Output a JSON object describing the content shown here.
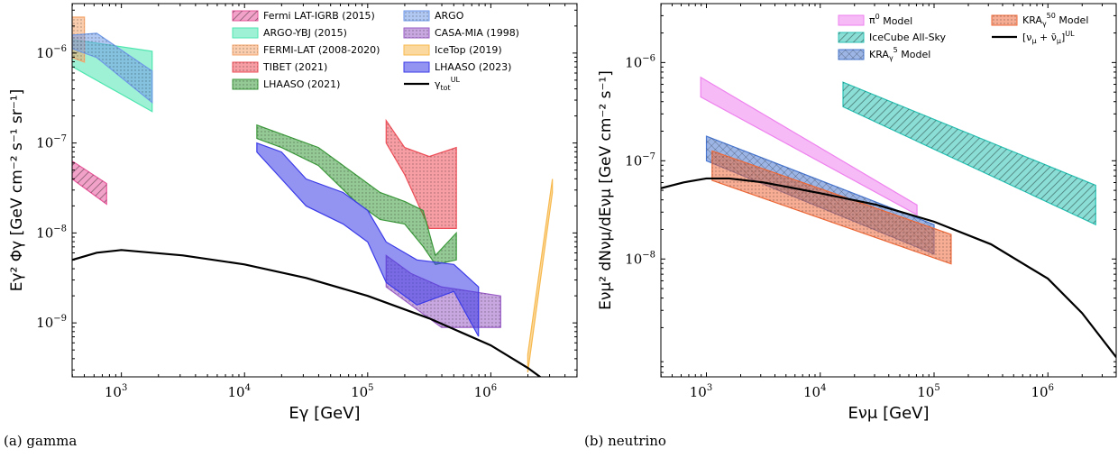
{
  "chart_data": [
    {
      "type": "area",
      "panel": "gamma",
      "caption": "(a) gamma",
      "xlabel": "Eγ [GeV]",
      "ylabel": "Eγ² Φγ [GeV cm⁻² s⁻¹ sr⁻¹]",
      "xscale": "log",
      "yscale": "log",
      "xlim_log10": [
        2.6,
        6.7
      ],
      "ylim_log10": [
        -9.6,
        -5.45
      ],
      "xticks": [
        {
          "label": "10",
          "exp": "3",
          "v": 3
        },
        {
          "label": "10",
          "exp": "4",
          "v": 4
        },
        {
          "label": "10",
          "exp": "5",
          "v": 5
        },
        {
          "label": "10",
          "exp": "6",
          "v": 6
        }
      ],
      "yticks": [
        {
          "label": "10",
          "exp": "−9",
          "v": -9
        },
        {
          "label": "10",
          "exp": "−8",
          "v": -8
        },
        {
          "label": "10",
          "exp": "−7",
          "v": -7
        },
        {
          "label": "10",
          "exp": "−6",
          "v": -6
        }
      ],
      "legend_position": "top-right",
      "series": [
        {
          "name": "Fermi LAT-IGRB (2015)",
          "kind": "band",
          "color": "#e8559a",
          "hatch": "diag",
          "upper": [
            [
              2.6,
              -7.2
            ],
            [
              2.88,
              -7.45
            ]
          ],
          "lower": [
            [
              2.6,
              -7.4
            ],
            [
              2.88,
              -7.68
            ]
          ]
        },
        {
          "name": "ARGO-YBJ (2015)",
          "kind": "band",
          "color": "#4ee6b0",
          "hatch": "none",
          "upper": [
            [
              2.6,
              -5.85
            ],
            [
              3.25,
              -5.98
            ]
          ],
          "lower": [
            [
              2.6,
              -6.15
            ],
            [
              3.25,
              -6.65
            ]
          ]
        },
        {
          "name": "FERMI-LAT (2008-2020)",
          "kind": "band",
          "color": "#f4a46a",
          "hatch": "dots",
          "upper": [
            [
              2.6,
              -5.6
            ],
            [
              2.7,
              -5.6
            ]
          ],
          "lower": [
            [
              2.6,
              -6.05
            ],
            [
              2.7,
              -6.1
            ]
          ]
        },
        {
          "name": "TIBET (2021)",
          "kind": "band",
          "color": "#ef4e58",
          "hatch": "dots",
          "upper": [
            [
              5.15,
              -6.75
            ],
            [
              5.3,
              -7.05
            ],
            [
              5.5,
              -7.15
            ],
            [
              5.72,
              -7.05
            ]
          ],
          "lower": [
            [
              5.15,
              -7.0
            ],
            [
              5.3,
              -7.35
            ],
            [
              5.5,
              -7.95
            ],
            [
              5.72,
              -7.95
            ]
          ]
        },
        {
          "name": "LHAASO (2021)",
          "kind": "band",
          "color": "#3c9a3c",
          "hatch": "dots",
          "upper": [
            [
              4.1,
              -6.8
            ],
            [
              4.3,
              -6.9
            ],
            [
              4.6,
              -7.05
            ],
            [
              4.9,
              -7.35
            ],
            [
              5.1,
              -7.55
            ],
            [
              5.3,
              -7.65
            ],
            [
              5.45,
              -7.75
            ],
            [
              5.55,
              -8.25
            ],
            [
              5.72,
              -8.0
            ]
          ],
          "lower": [
            [
              4.1,
              -6.95
            ],
            [
              4.3,
              -7.05
            ],
            [
              4.6,
              -7.25
            ],
            [
              4.9,
              -7.65
            ],
            [
              5.1,
              -7.85
            ],
            [
              5.3,
              -7.9
            ],
            [
              5.45,
              -8.15
            ],
            [
              5.55,
              -8.35
            ],
            [
              5.72,
              -8.3
            ]
          ]
        },
        {
          "name": "ARGO",
          "kind": "band",
          "color": "#6f9ae8",
          "hatch": "dots",
          "upper": [
            [
              2.6,
              -5.8
            ],
            [
              2.8,
              -5.78
            ],
            [
              3.25,
              -6.2
            ]
          ],
          "lower": [
            [
              2.6,
              -5.95
            ],
            [
              2.8,
              -6.05
            ],
            [
              3.25,
              -6.55
            ]
          ]
        },
        {
          "name": "CASA-MIA (1998)",
          "kind": "band",
          "color": "#9a5cc7",
          "hatch": "dots",
          "upper": [
            [
              5.15,
              -8.25
            ],
            [
              5.35,
              -8.45
            ],
            [
              5.6,
              -8.6
            ],
            [
              6.08,
              -8.7
            ]
          ],
          "lower": [
            [
              5.15,
              -8.6
            ],
            [
              5.35,
              -8.8
            ],
            [
              5.6,
              -9.05
            ],
            [
              6.08,
              -9.05
            ]
          ]
        },
        {
          "name": "IceTop (2019)",
          "kind": "band",
          "color": "#f7b94e",
          "hatch": "none",
          "upper": [
            [
              6.3,
              -9.35
            ],
            [
              6.5,
              -7.4
            ]
          ],
          "lower": [
            [
              6.3,
              -9.55
            ],
            [
              6.5,
              -7.55
            ]
          ]
        },
        {
          "name": "LHAASO (2023)",
          "kind": "band",
          "color": "#3b3be8",
          "hatch": "none",
          "upper": [
            [
              4.1,
              -7.0
            ],
            [
              4.3,
              -7.1
            ],
            [
              4.5,
              -7.4
            ],
            [
              4.8,
              -7.55
            ],
            [
              5.0,
              -7.75
            ],
            [
              5.15,
              -8.1
            ],
            [
              5.4,
              -8.3
            ],
            [
              5.7,
              -8.35
            ],
            [
              5.9,
              -8.6
            ]
          ],
          "lower": [
            [
              4.1,
              -7.1
            ],
            [
              4.3,
              -7.4
            ],
            [
              4.5,
              -7.7
            ],
            [
              4.8,
              -7.9
            ],
            [
              5.0,
              -8.1
            ],
            [
              5.15,
              -8.55
            ],
            [
              5.4,
              -8.8
            ],
            [
              5.7,
              -8.65
            ],
            [
              5.9,
              -9.15
            ]
          ]
        },
        {
          "name": "γ UL tot",
          "kind": "line",
          "color": "#000000",
          "x": [
            2.6,
            2.8,
            3.0,
            3.5,
            4.0,
            4.5,
            5.0,
            5.5,
            6.0,
            6.3,
            6.5,
            6.7
          ],
          "y": [
            -8.3,
            -8.22,
            -8.19,
            -8.25,
            -8.35,
            -8.5,
            -8.7,
            -8.95,
            -9.25,
            -9.5,
            -9.7,
            -9.95
          ]
        }
      ]
    },
    {
      "type": "area",
      "panel": "neutrino",
      "caption": "(b) neutrino",
      "xlabel": "Eνμ [GeV]",
      "ylabel": "Eνμ² dNνμ/dEνμ [GeV cm⁻² s⁻¹]",
      "xscale": "log",
      "yscale": "log",
      "xlim_log10": [
        2.6,
        6.6
      ],
      "ylim_log10": [
        -9.2,
        -5.4
      ],
      "xticks": [
        {
          "label": "10",
          "exp": "3",
          "v": 3
        },
        {
          "label": "10",
          "exp": "4",
          "v": 4
        },
        {
          "label": "10",
          "exp": "5",
          "v": 5
        },
        {
          "label": "10",
          "exp": "6",
          "v": 6
        }
      ],
      "yticks": [
        {
          "label": "10",
          "exp": "−8",
          "v": -8
        },
        {
          "label": "10",
          "exp": "−7",
          "v": -7
        },
        {
          "label": "10",
          "exp": "−6",
          "v": -6
        }
      ],
      "legend_position": "top-right",
      "series": [
        {
          "name": "π0 Model",
          "kind": "band",
          "color": "#ee82ee",
          "hatch": "none",
          "upper": [
            [
              2.95,
              -6.15
            ],
            [
              4.85,
              -7.45
            ]
          ],
          "lower": [
            [
              2.95,
              -6.35
            ],
            [
              4.85,
              -7.55
            ]
          ]
        },
        {
          "name": "IceCube All-Sky",
          "kind": "band",
          "color": "#2ac2b4",
          "hatch": "diag",
          "upper": [
            [
              4.2,
              -6.2
            ],
            [
              6.42,
              -7.25
            ]
          ],
          "lower": [
            [
              4.2,
              -6.45
            ],
            [
              6.42,
              -7.65
            ]
          ]
        },
        {
          "name": "KRAγ 5 Model",
          "kind": "band",
          "color": "#4a78d0",
          "hatch": "cross",
          "upper": [
            [
              3.0,
              -6.75
            ],
            [
              5.0,
              -7.65
            ]
          ],
          "lower": [
            [
              3.0,
              -7.0
            ],
            [
              5.0,
              -7.95
            ]
          ]
        },
        {
          "name": "KRAγ 50 Model",
          "kind": "band",
          "color": "#ee6a3a",
          "hatch": "dots",
          "upper": [
            [
              3.05,
              -6.9
            ],
            [
              5.15,
              -7.75
            ]
          ],
          "lower": [
            [
              3.05,
              -7.2
            ],
            [
              5.15,
              -8.05
            ]
          ]
        },
        {
          "name": "[νμ + ν̄μ] UL",
          "kind": "line",
          "color": "#000000",
          "x": [
            2.6,
            2.8,
            3.0,
            3.2,
            3.5,
            4.0,
            4.5,
            5.0,
            5.5,
            6.0,
            6.3,
            6.6
          ],
          "y": [
            -7.28,
            -7.22,
            -7.18,
            -7.18,
            -7.22,
            -7.33,
            -7.45,
            -7.62,
            -7.85,
            -8.2,
            -8.55,
            -9.0
          ]
        }
      ]
    }
  ],
  "legends": {
    "gamma": [
      {
        "label": "Fermi LAT-IGRB (2015)",
        "color": "#e8559a",
        "hatch": "diag"
      },
      {
        "label": "ARGO-YBJ (2015)",
        "color": "#4ee6b0",
        "hatch": "none"
      },
      {
        "label": "FERMI-LAT (2008-2020)",
        "color": "#f4a46a",
        "hatch": "dots"
      },
      {
        "label": "TIBET (2021)",
        "color": "#ef4e58",
        "hatch": "dots"
      },
      {
        "label": "LHAASO (2021)",
        "color": "#3c9a3c",
        "hatch": "dots"
      },
      {
        "label": "ARGO",
        "color": "#6f9ae8",
        "hatch": "dots"
      },
      {
        "label": "CASA-MIA (1998)",
        "color": "#9a5cc7",
        "hatch": "dots"
      },
      {
        "label": "IceTop (2019)",
        "color": "#f7b94e",
        "hatch": "none"
      },
      {
        "label": "LHAASO (2023)",
        "color": "#3b3be8",
        "hatch": "none"
      },
      {
        "label": "γ",
        "sub": "tot",
        "sup": "UL",
        "color": "#000000",
        "hatch": "line"
      }
    ],
    "neutrino": [
      {
        "label": "π",
        "sup": "0",
        "after": " Model",
        "color": "#ee82ee",
        "hatch": "none"
      },
      {
        "label": "IceCube All-Sky",
        "color": "#2ac2b4",
        "hatch": "diag"
      },
      {
        "label": "KRA",
        "sub": "γ",
        "sup": "5",
        "after": " Model",
        "color": "#4a78d0",
        "hatch": "cross"
      },
      {
        "label": "KRA",
        "sub": "γ",
        "sup": "50",
        "after": " Model",
        "color": "#ee6a3a",
        "hatch": "dots"
      },
      {
        "label": "[ν",
        "sub": "μ",
        "after": " + ν̄",
        "sub2": "μ",
        "after2": "]",
        "sup2": "UL",
        "color": "#000000",
        "hatch": "line"
      }
    ]
  },
  "captions": {
    "a": "(a) gamma",
    "b": "(b) neutrino"
  }
}
